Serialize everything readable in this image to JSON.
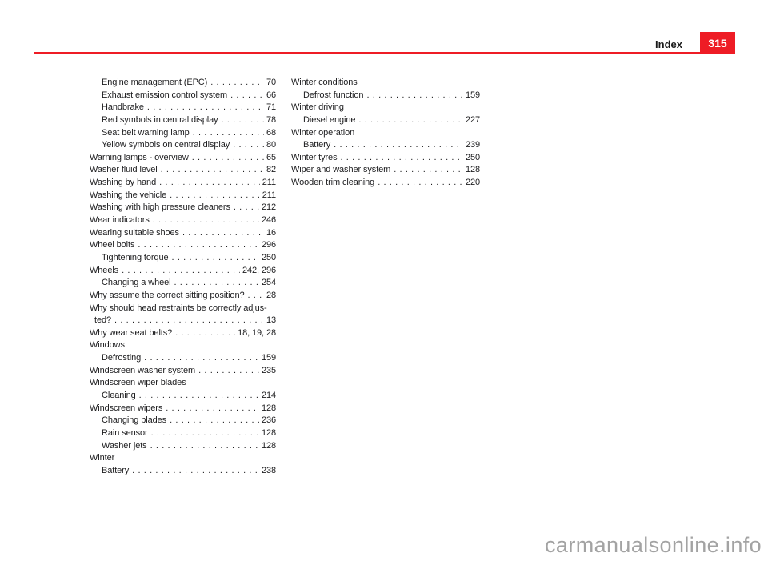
{
  "header": {
    "section_label": "Index",
    "page_number": "315",
    "accent_color": "#ee1c25"
  },
  "index": {
    "left_column": [
      {
        "label": "Engine management (EPC)",
        "page": "70",
        "indent": 1
      },
      {
        "label": "Exhaust emission control system",
        "page": "66",
        "indent": 1
      },
      {
        "label": "Handbrake",
        "page": "71",
        "indent": 1
      },
      {
        "label": "Red symbols in central display",
        "page": "78",
        "indent": 1
      },
      {
        "label": "Seat belt warning lamp",
        "page": "68",
        "indent": 1
      },
      {
        "label": "Yellow symbols on central display",
        "page": "80",
        "indent": 1
      },
      {
        "label": "Warning lamps - overview",
        "page": "65",
        "indent": 0
      },
      {
        "label": "Washer fluid level",
        "page": "82",
        "indent": 0
      },
      {
        "label": "Washing by hand",
        "page": "211",
        "indent": 0
      },
      {
        "label": "Washing the vehicle",
        "page": "211",
        "indent": 0
      },
      {
        "label": "Washing with high pressure cleaners",
        "page": "212",
        "indent": 0
      },
      {
        "label": "Wear indicators",
        "page": "246",
        "indent": 0
      },
      {
        "label": "Wearing suitable shoes",
        "page": "16",
        "indent": 0
      },
      {
        "label": "Wheel bolts",
        "page": "296",
        "indent": 0
      },
      {
        "label": "Tightening torque",
        "page": "250",
        "indent": 1
      },
      {
        "label": "Wheels",
        "page": "242, 296",
        "indent": 0
      },
      {
        "label": "Changing a wheel",
        "page": "254",
        "indent": 1
      },
      {
        "label": "Why assume the correct sitting position?",
        "page": "28",
        "indent": 0
      },
      {
        "label": "Why should head restraints be correctly adjus-",
        "indent": 0
      },
      {
        "label": "ted?",
        "page": "13",
        "indent": "c"
      },
      {
        "label": "Why wear seat belts?",
        "page": "18, 19, 28",
        "indent": 0
      },
      {
        "label": "Windows",
        "indent": 0
      },
      {
        "label": "Defrosting",
        "page": "159",
        "indent": 1
      },
      {
        "label": "Windscreen washer system",
        "page": "235",
        "indent": 0
      },
      {
        "label": "Windscreen wiper blades",
        "indent": 0
      },
      {
        "label": "Cleaning",
        "page": "214",
        "indent": 1
      },
      {
        "label": "Windscreen wipers",
        "page": "128",
        "indent": 0
      },
      {
        "label": "Changing blades",
        "page": "236",
        "indent": 1
      },
      {
        "label": "Rain sensor",
        "page": "128",
        "indent": 1
      },
      {
        "label": "Washer jets",
        "page": "128",
        "indent": 1
      },
      {
        "label": "Winter",
        "indent": 0
      },
      {
        "label": "Battery",
        "page": "238",
        "indent": 1
      }
    ],
    "right_column": [
      {
        "label": "Winter conditions",
        "indent": 0
      },
      {
        "label": "Defrost function",
        "page": "159",
        "indent": 1
      },
      {
        "label": "Winter driving",
        "indent": 0
      },
      {
        "label": "Diesel engine",
        "page": "227",
        "indent": 1
      },
      {
        "label": "Winter operation",
        "indent": 0
      },
      {
        "label": "Battery",
        "page": "239",
        "indent": 1
      },
      {
        "label": "Winter tyres",
        "page": "250",
        "indent": 0
      },
      {
        "label": "Wiper and washer system",
        "page": "128",
        "indent": 0
      },
      {
        "label": "Wooden trim cleaning",
        "page": "220",
        "indent": 0
      }
    ]
  },
  "watermark": {
    "text": "carmanualsonline.info"
  }
}
